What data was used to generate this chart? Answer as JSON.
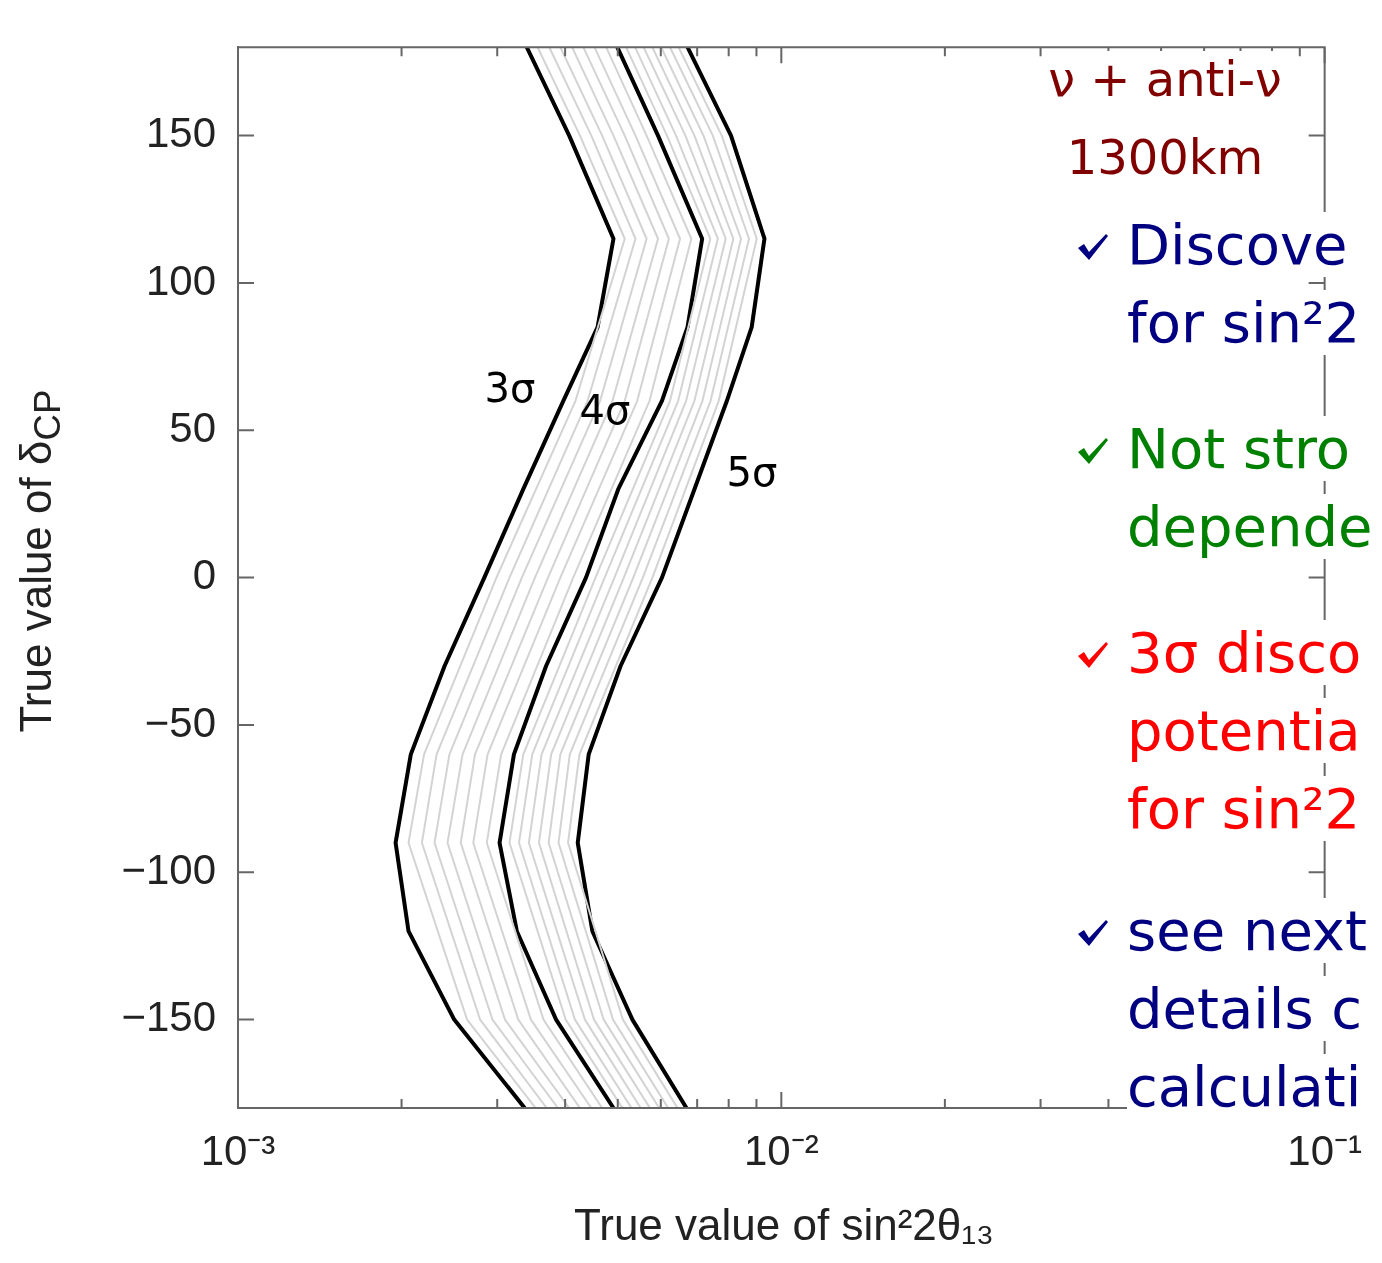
{
  "chart_data": {
    "type": "line",
    "xlabel": "True value of sin²2θ₁₃",
    "ylabel": "True value of δ$_{CP}$",
    "log": "x",
    "marker": "none",
    "legend": false,
    "grid": false,
    "xlim": [
      0.001,
      0.1
    ],
    "ylim": [
      -180,
      180
    ],
    "xticks": [
      {
        "value": 0.001,
        "label": "10⁻³"
      },
      {
        "value": 0.002,
        "label": null
      },
      {
        "value": 0.003,
        "label": null
      },
      {
        "value": 0.004,
        "label": null
      },
      {
        "value": 0.005,
        "label": null
      },
      {
        "value": 0.006,
        "label": null
      },
      {
        "value": 0.007,
        "label": null
      },
      {
        "value": 0.008,
        "label": null
      },
      {
        "value": 0.009,
        "label": null
      },
      {
        "value": 0.01,
        "label": "10⁻²"
      },
      {
        "value": 0.02,
        "label": null
      },
      {
        "value": 0.03,
        "label": null
      },
      {
        "value": 0.04,
        "label": null
      },
      {
        "value": 0.05,
        "label": null
      },
      {
        "value": 0.06,
        "label": null
      },
      {
        "value": 0.07,
        "label": null
      },
      {
        "value": 0.08,
        "label": null
      },
      {
        "value": 0.09,
        "label": null
      },
      {
        "value": 0.1,
        "label": "10⁻¹"
      }
    ],
    "yticks": [
      {
        "value": -150,
        "label": "−150"
      },
      {
        "value": -100,
        "label": "−100"
      },
      {
        "value": -50,
        "label": "−50"
      },
      0,
      50,
      100,
      150
    ],
    "series": [
      {
        "color": "#d3d3d3",
        "x": [
          0.00356,
          0.00426,
          0.00515,
          0.00418,
          0.00299,
          0.0022,
          0.00206,
          0.00264,
          0.00353
        ],
        "values": [
          180,
          150,
          115,
          60,
          0,
          -60,
          -90,
          -150,
          -180
        ]
      },
      {
        "color": "#d3d3d3",
        "x": [
          0.00374,
          0.00447,
          0.00539,
          0.0044,
          0.00316,
          0.00232,
          0.00218,
          0.00279,
          0.0037
        ],
        "values": [
          180,
          150,
          115,
          60,
          0,
          -60,
          -90,
          -150,
          -180
        ]
      },
      {
        "color": "#d3d3d3",
        "x": [
          0.00392,
          0.00468,
          0.00565,
          0.00464,
          0.00333,
          0.00245,
          0.0023,
          0.00294,
          0.00388
        ],
        "values": [
          180,
          150,
          115,
          60,
          0,
          -60,
          -90,
          -150,
          -180
        ]
      },
      {
        "color": "#d3d3d3",
        "x": [
          0.00412,
          0.00491,
          0.00593,
          0.00489,
          0.00352,
          0.00259,
          0.00243,
          0.0031,
          0.00407
        ],
        "values": [
          180,
          150,
          115,
          60,
          0,
          -60,
          -90,
          -150,
          -180
        ]
      },
      {
        "color": "#d3d3d3",
        "x": [
          0.00432,
          0.00515,
          0.00621,
          0.00515,
          0.00372,
          0.00273,
          0.00257,
          0.00328,
          0.00426
        ],
        "values": [
          180,
          150,
          115,
          60,
          0,
          -60,
          -90,
          -150,
          -180
        ]
      },
      {
        "color": "#d3d3d3",
        "x": [
          0.00453,
          0.00539,
          0.00651,
          0.00543,
          0.00392,
          0.00288,
          0.00271,
          0.00346,
          0.00447
        ],
        "values": [
          180,
          150,
          115,
          60,
          0,
          -60,
          -90,
          -150,
          -180
        ]
      },
      {
        "color": "#d3d3d3",
        "x": [
          0.00476,
          0.00565,
          0.00683,
          0.00572,
          0.00414,
          0.00305,
          0.00287,
          0.00365,
          0.00468
        ],
        "values": [
          180,
          150,
          115,
          60,
          0,
          -60,
          -90,
          -150,
          -180
        ]
      },
      {
        "color": "#d3d3d3",
        "x": [
          0.00518,
          0.00616,
          0.0074,
          0.00624,
          0.00455,
          0.00335,
          0.00316,
          0.00401,
          0.0051
        ],
        "values": [
          180,
          150,
          115,
          60,
          0,
          -60,
          -90,
          -150,
          -180
        ]
      },
      {
        "color": "#d3d3d3",
        "x": [
          0.00538,
          0.0064,
          0.00764,
          0.00646,
          0.00473,
          0.00348,
          0.00329,
          0.00417,
          0.0053
        ],
        "values": [
          180,
          150,
          115,
          60,
          0,
          -60,
          -90,
          -150,
          -180
        ]
      },
      {
        "color": "#d3d3d3",
        "x": [
          0.00558,
          0.00666,
          0.0079,
          0.00668,
          0.00493,
          0.00362,
          0.00343,
          0.00435,
          0.00551
        ],
        "values": [
          180,
          150,
          115,
          60,
          0,
          -60,
          -90,
          -150,
          -180
        ]
      },
      {
        "color": "#d3d3d3",
        "x": [
          0.00579,
          0.00692,
          0.00816,
          0.00692,
          0.00513,
          0.00377,
          0.00358,
          0.00452,
          0.00573
        ],
        "values": [
          180,
          150,
          115,
          60,
          0,
          -60,
          -90,
          -150,
          -180
        ]
      },
      {
        "color": "#d3d3d3",
        "x": [
          0.00601,
          0.00719,
          0.00843,
          0.00716,
          0.00534,
          0.00392,
          0.00373,
          0.00471,
          0.00596
        ],
        "values": [
          180,
          150,
          115,
          60,
          0,
          -60,
          -90,
          -150,
          -180
        ]
      },
      {
        "color": "#d3d3d3",
        "x": [
          0.00624,
          0.00748,
          0.00872,
          0.00741,
          0.00556,
          0.00408,
          0.00389,
          0.0049,
          0.00619
        ],
        "values": [
          180,
          150,
          115,
          60,
          0,
          -60,
          -90,
          -150,
          -180
        ]
      },
      {
        "color": "#d3d3d3",
        "x": [
          0.00647,
          0.00777,
          0.00901,
          0.00767,
          0.00579,
          0.00425,
          0.00405,
          0.00511,
          0.00644
        ],
        "values": [
          180,
          150,
          115,
          60,
          0,
          -60,
          -90,
          -150,
          -180
        ]
      },
      {
        "color": "#000000",
        "x": [
          0.0034,
          0.00407,
          0.00491,
          0.00459,
          0.00397,
          0.00335,
          0.00284,
          0.0024,
          0.00208,
          0.00195,
          0.00206,
          0.0025,
          0.00337
        ],
        "values": [
          180,
          150,
          115,
          85,
          60,
          30,
          0,
          -30,
          -60,
          -90,
          -120,
          -150,
          -180
        ]
      },
      {
        "color": "#000000",
        "x": [
          0.00499,
          0.00593,
          0.00715,
          0.00672,
          0.00603,
          0.00501,
          0.00437,
          0.00369,
          0.00322,
          0.00303,
          0.00326,
          0.00385,
          0.00491
        ],
        "values": [
          180,
          150,
          115,
          85,
          60,
          30,
          0,
          -30,
          -60,
          -90,
          -120,
          -150,
          -180
        ]
      },
      {
        "color": "#000000",
        "x": [
          0.00672,
          0.00808,
          0.00931,
          0.00882,
          0.00794,
          0.00692,
          0.00603,
          0.00506,
          0.00442,
          0.00422,
          0.00449,
          0.00532,
          0.00669
        ],
        "values": [
          180,
          150,
          115,
          85,
          60,
          30,
          0,
          -30,
          -60,
          -90,
          -120,
          -150,
          -180
        ]
      }
    ],
    "annotations": [
      "3σ",
      "4σ",
      "5σ",
      "ν + anti-ν\n1300km",
      "Discove\nfor sin²2",
      "Not stro\ndepende",
      "3σ disco\npotentia\nfor sin²2",
      "see next\ndetails c\ncalculati"
    ]
  }
}
